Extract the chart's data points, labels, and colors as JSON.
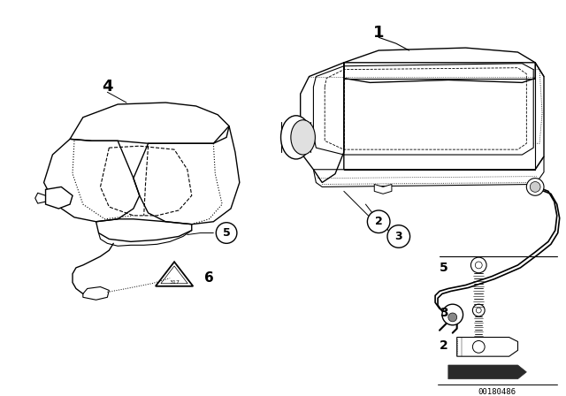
{
  "background_color": "#ffffff",
  "part_number": "00180486",
  "line_color": "#000000"
}
